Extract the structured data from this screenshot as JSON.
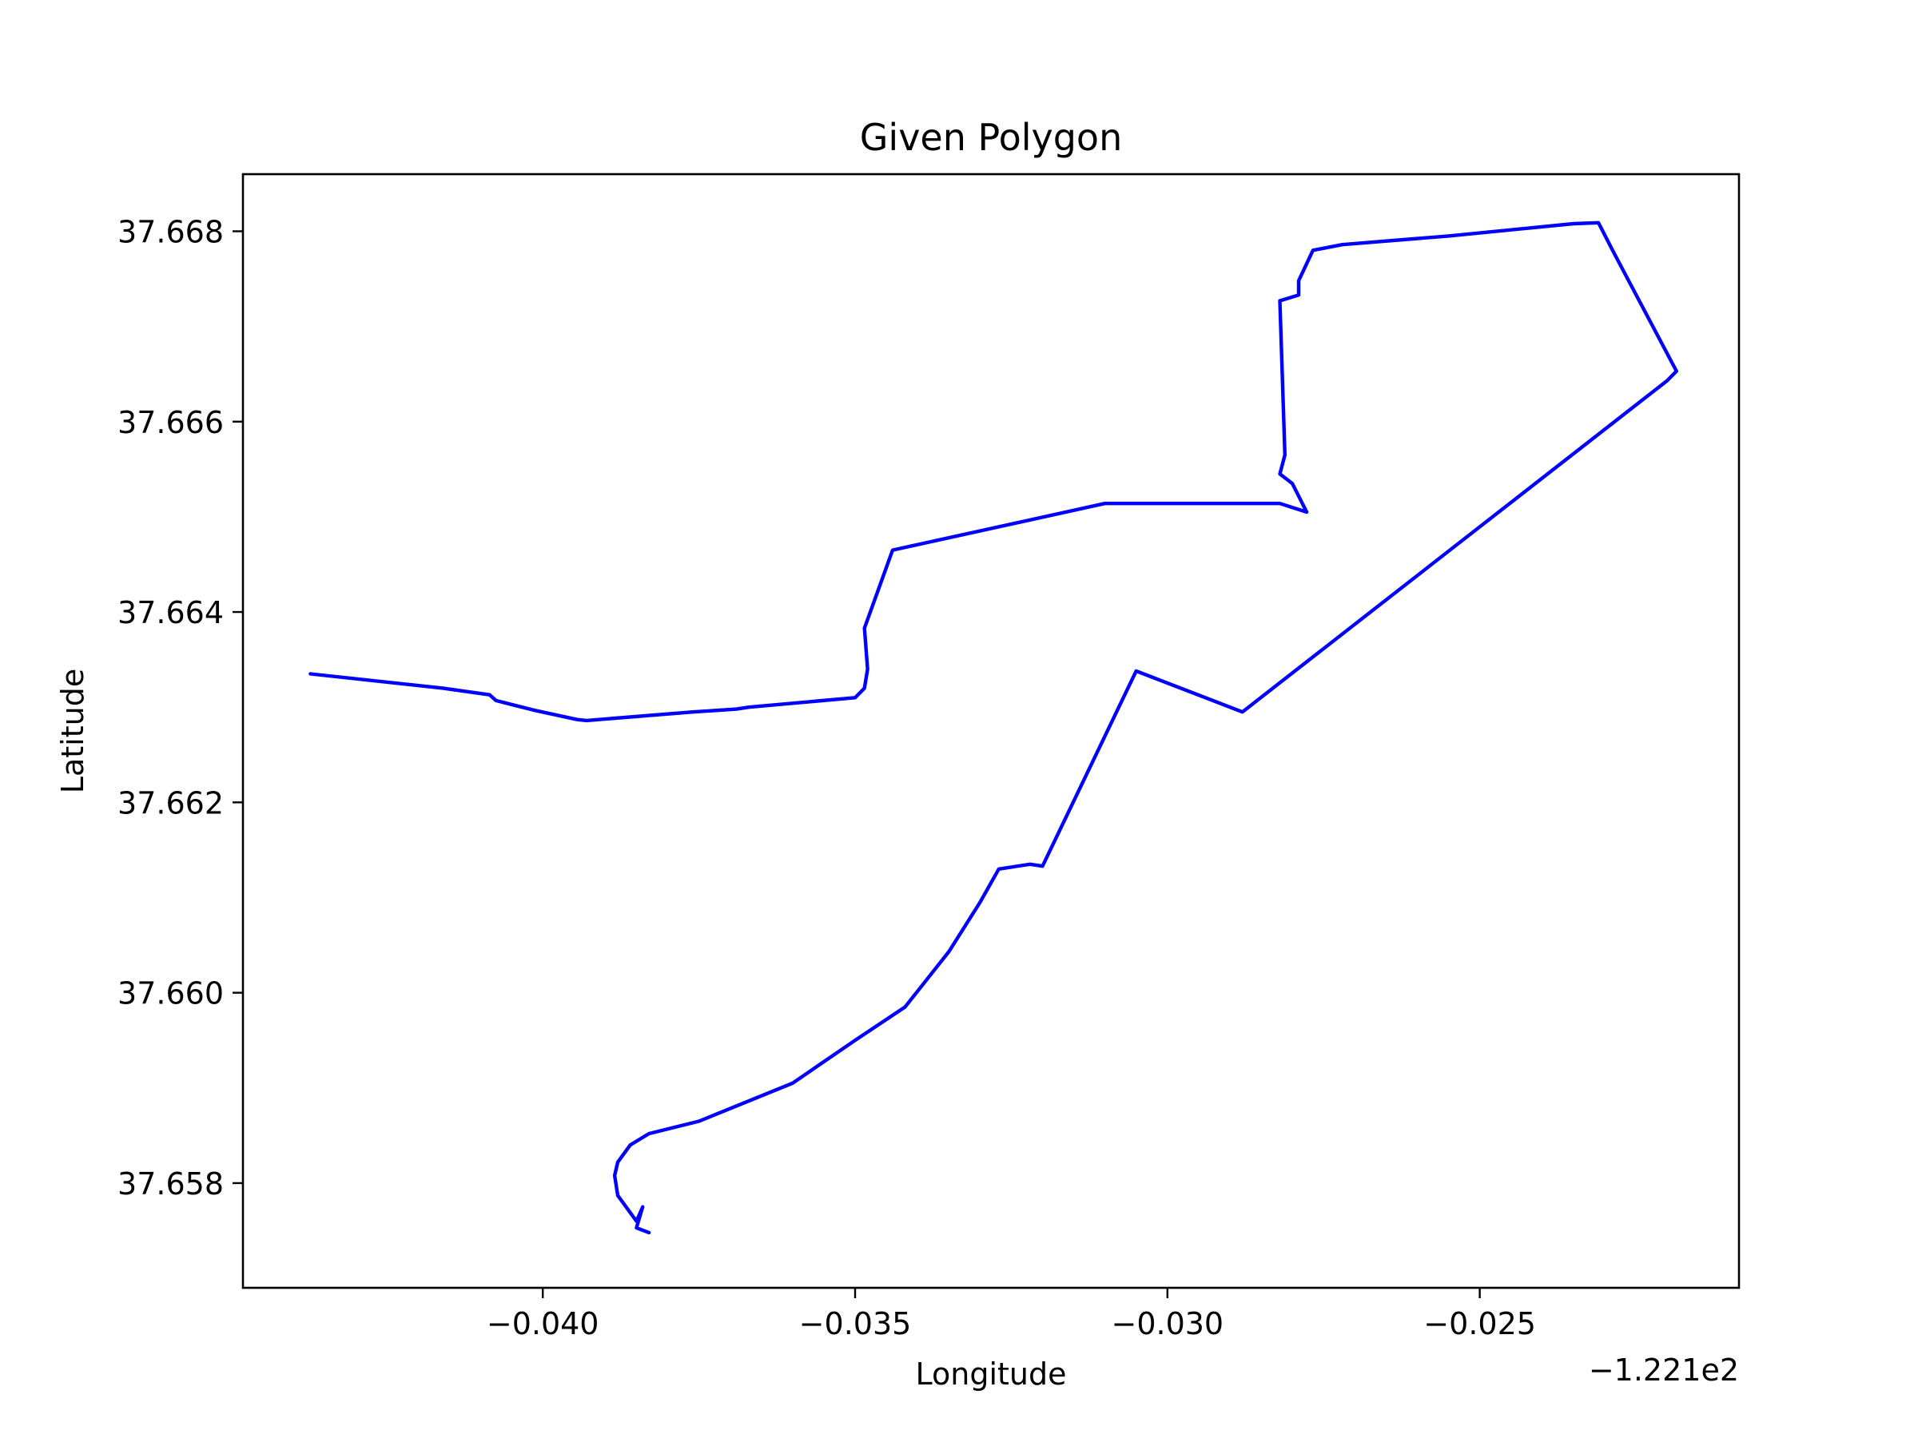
{
  "chart_data": {
    "type": "line",
    "title": "Given Polygon",
    "xlabel": "Longitude",
    "ylabel": "Latitude",
    "x_offset_label": "−1.221e2",
    "xlim": [
      -0.0448,
      -0.02085
    ],
    "ylim": [
      37.6569,
      37.6686
    ],
    "xticks": [
      -0.04,
      -0.035,
      -0.03,
      -0.025
    ],
    "xtick_labels": [
      "−0.040",
      "−0.035",
      "−0.030",
      "−0.025"
    ],
    "yticks": [
      37.658,
      37.66,
      37.662,
      37.664,
      37.666,
      37.668
    ],
    "ytick_labels": [
      "37.658",
      "37.660",
      "37.662",
      "37.664",
      "37.666",
      "37.668"
    ],
    "grid": false,
    "series": [
      {
        "color": "#0000ff",
        "x": [
          -0.04372,
          -0.0416,
          -0.04085,
          -0.04075,
          -0.04015,
          -0.03945,
          -0.0393,
          -0.0376,
          -0.0369,
          -0.0367,
          -0.035,
          -0.03485,
          -0.0348,
          -0.03485,
          -0.0344,
          -0.031,
          -0.0282,
          -0.02777,
          -0.028,
          -0.0282,
          -0.02812,
          -0.0282,
          -0.0279,
          -0.0279,
          -0.02767,
          -0.0272,
          -0.0255,
          -0.0235,
          -0.0231,
          -0.02285,
          -0.02185,
          -0.022,
          -0.0288,
          -0.0305,
          -0.032,
          -0.0322,
          -0.0327,
          -0.033,
          -0.0335,
          -0.0342,
          -0.035,
          -0.036,
          -0.0375,
          -0.0383,
          -0.0386,
          -0.0388,
          -0.03885,
          -0.0388,
          -0.0385,
          -0.0384,
          -0.0385,
          -0.0383
        ],
        "y": [
          37.66335,
          37.6632,
          37.66313,
          37.66307,
          37.66297,
          37.66287,
          37.66286,
          37.66295,
          37.66298,
          37.663,
          37.6631,
          37.6632,
          37.6634,
          37.66383,
          37.66465,
          37.66514,
          37.66514,
          37.66505,
          37.66535,
          37.66545,
          37.66565,
          37.66727,
          37.66733,
          37.66748,
          37.6678,
          37.66786,
          37.66795,
          37.66808,
          37.66809,
          37.66777,
          37.66653,
          37.66643,
          37.66295,
          37.66338,
          37.66133,
          37.66135,
          37.6613,
          37.66095,
          37.66043,
          37.65985,
          37.6595,
          37.65905,
          37.65865,
          37.65852,
          37.6584,
          37.65822,
          37.65808,
          37.65787,
          37.6576,
          37.65775,
          37.65753,
          37.65748
        ]
      }
    ]
  }
}
